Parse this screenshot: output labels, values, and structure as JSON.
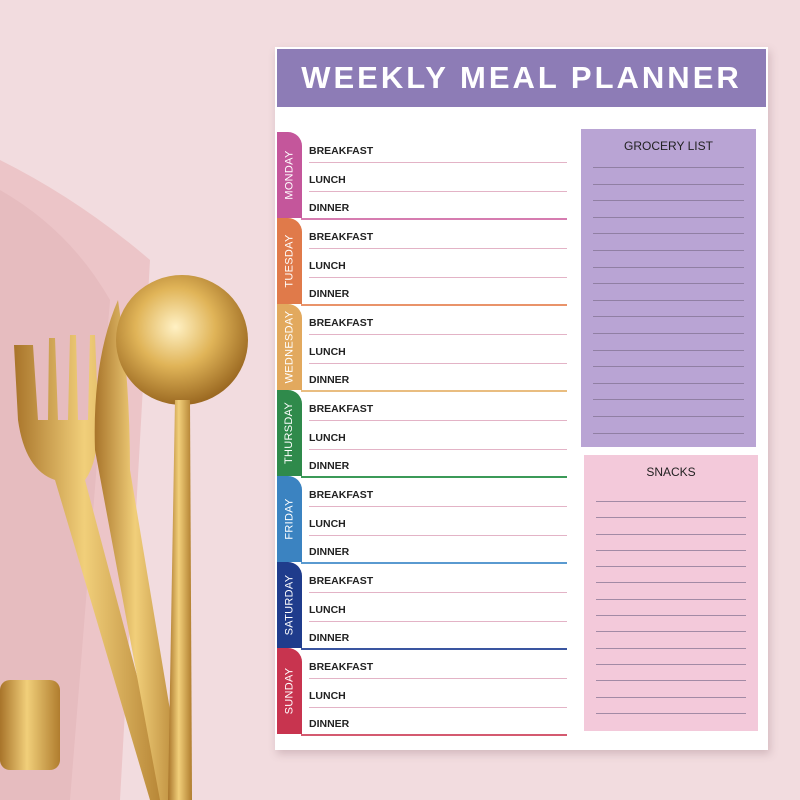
{
  "title": "WEEKLY MEAL PLANNER",
  "meals": [
    "BREAKFAST",
    "LUNCH",
    "DINNER"
  ],
  "days": [
    {
      "name": "MONDAY",
      "color": "#c4569b",
      "line": "#d67cb0"
    },
    {
      "name": "TUESDAY",
      "color": "#e07a4a",
      "line": "#e9936a"
    },
    {
      "name": "WEDNESDAY",
      "color": "#e2a95e",
      "line": "#e9bd80"
    },
    {
      "name": "THURSDAY",
      "color": "#2f8a4b",
      "line": "#3b9a58"
    },
    {
      "name": "FRIDAY",
      "color": "#3b83c1",
      "line": "#5a9ad0"
    },
    {
      "name": "SATURDAY",
      "color": "#1f3c8c",
      "line": "#3a55a0"
    },
    {
      "name": "SUNDAY",
      "color": "#c8344f",
      "line": "#d45a70"
    }
  ],
  "grocery": {
    "title": "GROCERY LIST",
    "color": "#b9a4d4"
  },
  "snacks": {
    "title": "SNACKS",
    "color": "#f3c9da"
  }
}
